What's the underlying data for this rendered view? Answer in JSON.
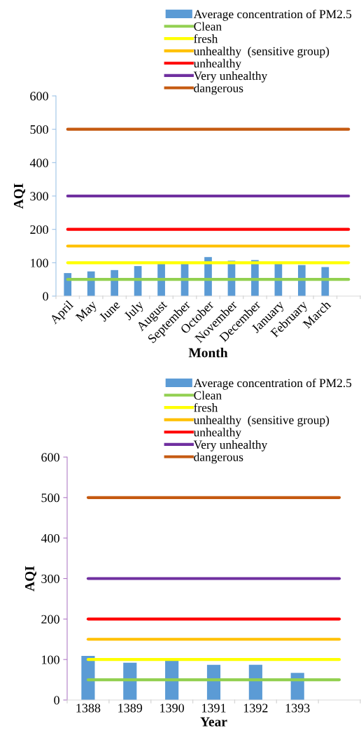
{
  "chart_data": [
    {
      "type": "bar",
      "xlabel": "Month",
      "ylabel": "AQI",
      "categories": [
        "April",
        "May",
        "June",
        "July",
        "August",
        "September",
        "October",
        "November",
        "December",
        "January",
        "February",
        "March",
        null
      ],
      "ylim": [
        0,
        600
      ],
      "yticks": [
        0,
        100,
        200,
        300,
        400,
        500,
        600
      ],
      "grid": false,
      "legend": "top right",
      "series": [
        {
          "name": "Average concentration of PM2.5",
          "color": "#5b9bd5",
          "values": [
            69,
            74,
            78,
            90,
            98,
            98,
            117,
            106,
            108,
            98,
            93,
            87,
            null
          ]
        },
        {
          "name": "Clean",
          "type": "line",
          "color": "#92d050",
          "values": [
            50,
            50,
            50,
            50,
            50,
            50,
            50,
            50,
            50,
            50,
            50,
            50,
            50
          ]
        },
        {
          "name": "fresh",
          "type": "line",
          "color": "#ffff00",
          "values": [
            100,
            100,
            100,
            100,
            100,
            100,
            100,
            100,
            100,
            100,
            100,
            100,
            100
          ]
        },
        {
          "name": "unhealthy  (sensitive group)",
          "type": "line",
          "color": "#ffc000",
          "values": [
            150,
            150,
            150,
            150,
            150,
            150,
            150,
            150,
            150,
            150,
            150,
            150,
            150
          ]
        },
        {
          "name": "unhealthy",
          "type": "line",
          "color": "#ff0000",
          "values": [
            200,
            200,
            200,
            200,
            200,
            200,
            200,
            200,
            200,
            200,
            200,
            200,
            200
          ]
        },
        {
          "name": "Very unhealthy",
          "type": "line",
          "color": "#7030a0",
          "values": [
            300,
            300,
            300,
            300,
            300,
            300,
            300,
            300,
            300,
            300,
            300,
            300,
            300
          ]
        },
        {
          "name": "dangerous",
          "type": "line",
          "color": "#c55a11",
          "values": [
            500,
            500,
            500,
            500,
            500,
            500,
            500,
            500,
            500,
            500,
            500,
            500,
            500
          ]
        }
      ]
    },
    {
      "type": "bar",
      "xlabel": "Year",
      "ylabel": "AQI",
      "categories": [
        "1388",
        "1389",
        "1390",
        "1391",
        "1392",
        "1393",
        null
      ],
      "ylim": [
        0,
        600
      ],
      "yticks": [
        0,
        100,
        200,
        300,
        400,
        500,
        600
      ],
      "grid": false,
      "legend": "top right",
      "series": [
        {
          "name": "Average concentration of PM2.5",
          "color": "#5b9bd5",
          "values": [
            109,
            92,
            97,
            87,
            87,
            67,
            null
          ]
        },
        {
          "name": "Clean",
          "type": "line",
          "color": "#92d050",
          "values": [
            50,
            50,
            50,
            50,
            50,
            50,
            50
          ]
        },
        {
          "name": "fresh",
          "type": "line",
          "color": "#ffff00",
          "values": [
            100,
            100,
            100,
            100,
            100,
            100,
            100
          ]
        },
        {
          "name": "unhealthy  (sensitive group)",
          "type": "line",
          "color": "#ffc000",
          "values": [
            150,
            150,
            150,
            150,
            150,
            150,
            150
          ]
        },
        {
          "name": "unhealthy",
          "type": "line",
          "color": "#ff0000",
          "values": [
            200,
            200,
            200,
            200,
            200,
            200,
            200
          ]
        },
        {
          "name": "Very unhealthy",
          "type": "line",
          "color": "#7030a0",
          "values": [
            300,
            300,
            300,
            300,
            300,
            300,
            300
          ]
        },
        {
          "name": "dangerous",
          "type": "line",
          "color": "#c55a11",
          "values": [
            500,
            500,
            500,
            500,
            500,
            500,
            500
          ]
        }
      ]
    }
  ]
}
